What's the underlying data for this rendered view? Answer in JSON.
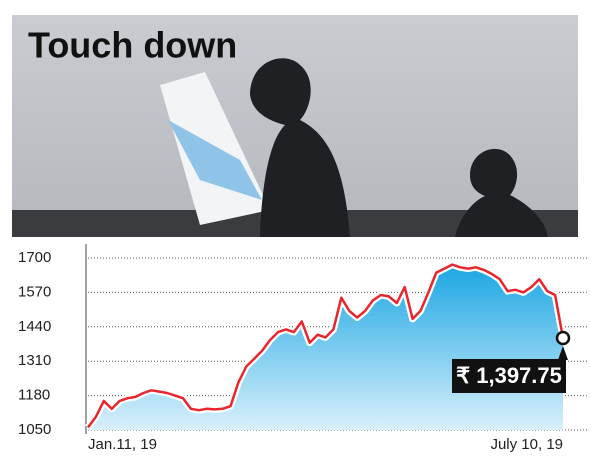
{
  "chart_data": {
    "type": "line",
    "title": "Touch down",
    "categories": [
      "Jan.11, 19",
      null,
      null,
      null,
      null,
      null,
      null,
      null,
      null,
      null,
      null,
      null,
      null,
      null,
      null,
      null,
      null,
      null,
      null,
      null,
      null,
      null,
      null,
      null,
      null,
      null,
      null,
      null,
      null,
      null,
      null,
      null,
      null,
      null,
      null,
      null,
      null,
      null,
      null,
      null,
      null,
      null,
      null,
      null,
      null,
      null,
      null,
      null,
      null,
      null,
      null,
      null,
      null,
      null,
      null,
      null,
      null,
      null,
      null,
      null,
      "July 10, 19"
    ],
    "values": [
      1060,
      1100,
      1160,
      1130,
      1160,
      1170,
      1175,
      1190,
      1200,
      1195,
      1190,
      1180,
      1170,
      1130,
      1125,
      1130,
      1128,
      1130,
      1140,
      1230,
      1290,
      1320,
      1350,
      1390,
      1420,
      1430,
      1420,
      1460,
      1380,
      1410,
      1400,
      1430,
      1550,
      1500,
      1475,
      1500,
      1540,
      1560,
      1555,
      1530,
      1590,
      1470,
      1500,
      1570,
      1645,
      1660,
      1675,
      1665,
      1660,
      1665,
      1655,
      1640,
      1620,
      1575,
      1580,
      1570,
      1590,
      1620,
      1575,
      1560,
      1397.75
    ],
    "value_labels": [
      null,
      null,
      null,
      null,
      null,
      null,
      null,
      null,
      null,
      null,
      null,
      null,
      null,
      null,
      null,
      null,
      null,
      null,
      null,
      null,
      null,
      null,
      null,
      null,
      null,
      null,
      null,
      null,
      null,
      null,
      null,
      null,
      null,
      null,
      null,
      null,
      null,
      null,
      null,
      null,
      null,
      null,
      null,
      null,
      null,
      null,
      null,
      null,
      null,
      null,
      null,
      null,
      null,
      null,
      null,
      null,
      null,
      null,
      null,
      null,
      "₹ 1,397.75"
    ],
    "color": "#e8262d",
    "fill": "#1ba6e3",
    "ylim": [
      1050,
      1700
    ],
    "yticks": [
      1050,
      1180,
      1310,
      1440,
      1570,
      1700
    ],
    "grid": true
  }
}
